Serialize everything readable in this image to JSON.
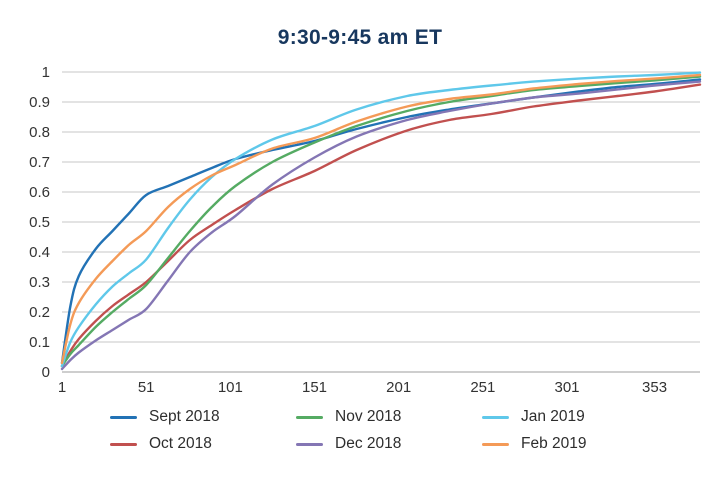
{
  "title": "9:30-9:45 am ET",
  "colors": {
    "title_text": "#17375e",
    "grid_line": "#c7c7c7",
    "axis_line": "#9e9e9e",
    "tick_text": "#333333",
    "legend_text": "#2d2d2d",
    "background": "#ffffff"
  },
  "chart_data": {
    "type": "line",
    "title": "9:30-9:45 am ET",
    "xlabel": "",
    "ylabel": "",
    "xlim": [
      1,
      380
    ],
    "ylim": [
      0,
      1
    ],
    "grid": "horizontal",
    "legend_position": "bottom",
    "x_ticks": [
      1,
      51,
      101,
      151,
      201,
      251,
      301,
      353
    ],
    "y_ticks": [
      0,
      0.1,
      0.2,
      0.3,
      0.4,
      0.5,
      0.6,
      0.7,
      0.8,
      0.9,
      1
    ],
    "y_tick_labels": [
      "0",
      "0.1",
      "0.2",
      "0.3",
      "0.4",
      "0.5",
      "0.6",
      "0.7",
      "0.8",
      "0.9",
      "1"
    ],
    "x": [
      1,
      6,
      11,
      21,
      31,
      41,
      51,
      64,
      77,
      90,
      104,
      126,
      151,
      176,
      206,
      231,
      256,
      281,
      308,
      331,
      353,
      380
    ],
    "series": [
      {
        "name": "Sept 2018",
        "color": "#2272b5",
        "values": [
          0.03,
          0.22,
          0.32,
          0.41,
          0.47,
          0.53,
          0.59,
          0.62,
          0.65,
          0.68,
          0.71,
          0.74,
          0.77,
          0.81,
          0.85,
          0.875,
          0.895,
          0.915,
          0.935,
          0.95,
          0.96,
          0.975
        ]
      },
      {
        "name": "Oct 2018",
        "color": "#c1504f",
        "values": [
          0.02,
          0.07,
          0.11,
          0.17,
          0.22,
          0.26,
          0.3,
          0.37,
          0.44,
          0.49,
          0.54,
          0.61,
          0.67,
          0.74,
          0.805,
          0.84,
          0.86,
          0.885,
          0.905,
          0.92,
          0.935,
          0.958
        ]
      },
      {
        "name": "Nov 2018",
        "color": "#55ab63",
        "values": [
          0.02,
          0.06,
          0.09,
          0.15,
          0.2,
          0.245,
          0.29,
          0.38,
          0.47,
          0.55,
          0.62,
          0.7,
          0.765,
          0.82,
          0.87,
          0.9,
          0.92,
          0.94,
          0.953,
          0.963,
          0.972,
          0.985
        ]
      },
      {
        "name": "Dec 2018",
        "color": "#8476b4",
        "values": [
          0.01,
          0.04,
          0.065,
          0.105,
          0.14,
          0.175,
          0.21,
          0.305,
          0.4,
          0.465,
          0.52,
          0.625,
          0.715,
          0.785,
          0.84,
          0.87,
          0.895,
          0.915,
          0.928,
          0.942,
          0.955,
          0.968
        ]
      },
      {
        "name": "Jan 2019",
        "color": "#5fc8ea",
        "values": [
          0.02,
          0.1,
          0.15,
          0.225,
          0.285,
          0.33,
          0.375,
          0.48,
          0.575,
          0.65,
          0.71,
          0.775,
          0.82,
          0.875,
          0.92,
          0.94,
          0.955,
          0.968,
          0.978,
          0.985,
          0.99,
          0.998
        ]
      },
      {
        "name": "Feb 2019",
        "color": "#f49a57",
        "values": [
          0.03,
          0.16,
          0.23,
          0.31,
          0.37,
          0.425,
          0.47,
          0.55,
          0.61,
          0.655,
          0.69,
          0.745,
          0.78,
          0.835,
          0.885,
          0.91,
          0.925,
          0.945,
          0.96,
          0.97,
          0.978,
          0.99
        ]
      }
    ],
    "legend_order": [
      "Sept 2018",
      "Oct 2018",
      "Nov 2018",
      "Dec 2018",
      "Jan 2019",
      "Feb 2019"
    ]
  }
}
